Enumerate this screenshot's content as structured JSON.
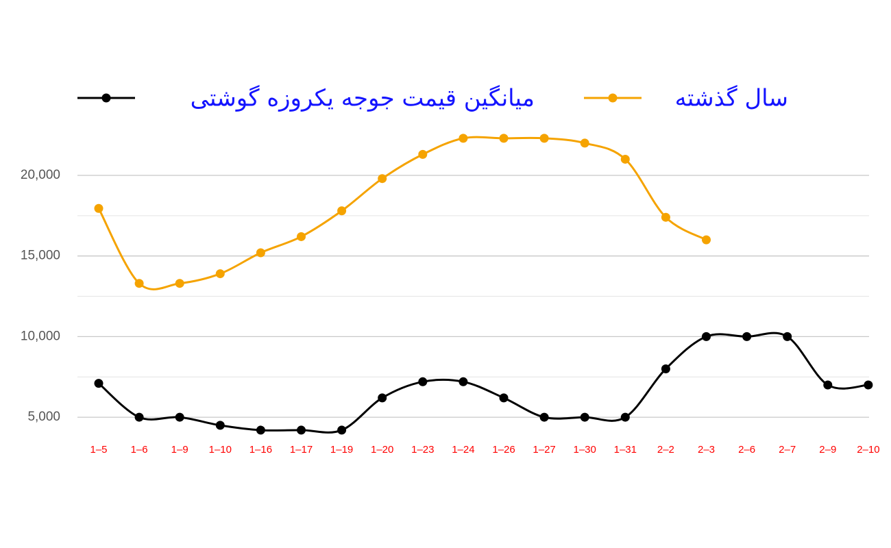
{
  "chart_data": {
    "type": "line",
    "categories": [
      "1–5",
      "1–6",
      "1–9",
      "1–10",
      "1–16",
      "1–17",
      "1–19",
      "1–20",
      "1–23",
      "1–24",
      "1–26",
      "1–27",
      "1–30",
      "1–31",
      "2–2",
      "2–3",
      "2–6",
      "2–7",
      "2–9",
      "2–10"
    ],
    "series": [
      {
        "name": "میانگین قیمت جوجه یکروزه گوشتی",
        "color": "#000000",
        "values": [
          7100,
          5000,
          5000,
          4500,
          4200,
          4200,
          4200,
          6200,
          7200,
          7200,
          6200,
          5000,
          5000,
          5000,
          8000,
          10000,
          10000,
          10000,
          7000,
          7000
        ]
      },
      {
        "name": "سال گذشته",
        "color": "#f5a300",
        "values": [
          17950,
          13300,
          13300,
          13900,
          15200,
          16200,
          17800,
          19800,
          21300,
          22300,
          22300,
          22300,
          22000,
          21000,
          17400,
          16000,
          null,
          null,
          null,
          null
        ]
      }
    ],
    "ylim": [
      3500,
      23500
    ],
    "yticks": [
      {
        "value": 5000,
        "label": "5,000"
      },
      {
        "value": 10000,
        "label": "10,000"
      },
      {
        "value": 15000,
        "label": "15,000"
      },
      {
        "value": 20000,
        "label": "20,000"
      }
    ],
    "minor_gridlines": [
      7500,
      12500,
      17500
    ],
    "grid": true,
    "smooth": true,
    "legend": "top"
  }
}
